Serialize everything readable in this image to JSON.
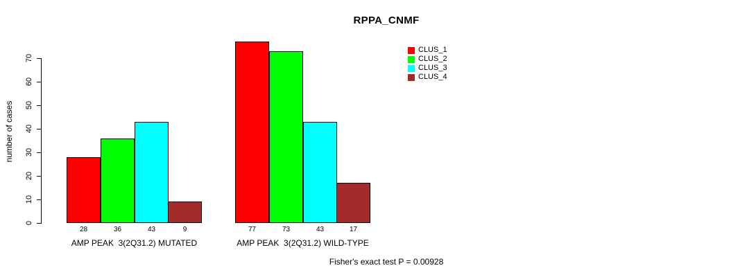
{
  "title": "RPPA_CNMF",
  "y_axis_label": "number of cases",
  "footer_note": "Fisher's exact test P = 0.00928",
  "colors": {
    "clus_1": "#ff0000",
    "clus_2": "#00ff00",
    "clus_3": "#00ffff",
    "clus_4": "#a52a2a",
    "axis": "#000000",
    "background": "#ffffff"
  },
  "chart_data": {
    "type": "bar",
    "title": "RPPA_CNMF",
    "xlabel": "",
    "ylabel": "number of cases",
    "categories": [
      "AMP PEAK  3(2Q31.2) MUTATED",
      "AMP PEAK  3(2Q31.2) WILD-TYPE"
    ],
    "series": [
      {
        "name": "CLUS_1",
        "color": "#ff0000",
        "values": [
          28,
          77
        ]
      },
      {
        "name": "CLUS_2",
        "color": "#00ff00",
        "values": [
          36,
          73
        ]
      },
      {
        "name": "CLUS_3",
        "color": "#00ffff",
        "values": [
          43,
          43
        ]
      },
      {
        "name": "CLUS_4",
        "color": "#a52a2a",
        "values": [
          9,
          17
        ]
      }
    ],
    "bar_value_labels": [
      [
        "28",
        "36",
        "43",
        "9"
      ],
      [
        "77",
        "73",
        "43",
        "17"
      ]
    ],
    "yticks": [
      0,
      10,
      20,
      30,
      40,
      50,
      60,
      70
    ],
    "ylim": [
      0,
      77
    ],
    "grid": false,
    "legend_position": "top-right",
    "legend_entries": [
      "CLUS_1",
      "CLUS_2",
      "CLUS_3",
      "CLUS_4"
    ],
    "annotation": "Fisher's exact test P = 0.00928"
  }
}
